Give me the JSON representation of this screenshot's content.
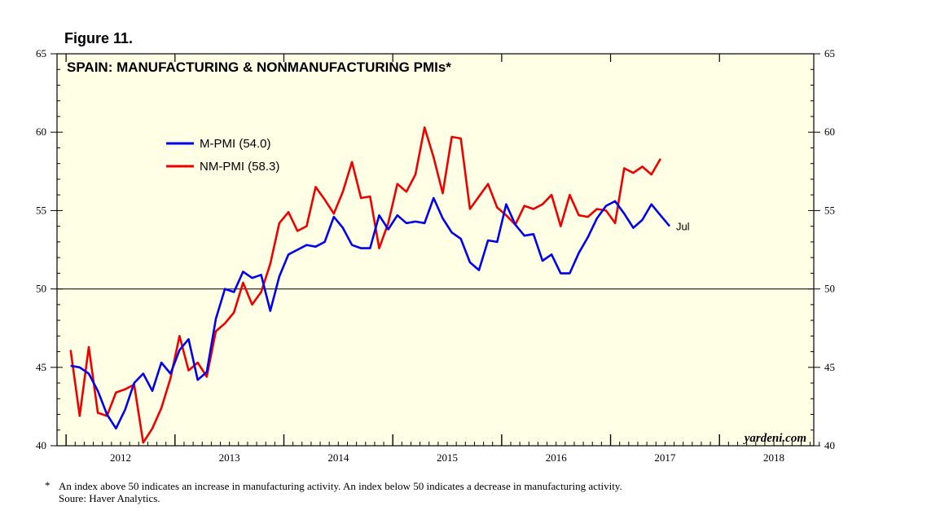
{
  "figure_label": "Figure 11.",
  "footnotes": {
    "asterisk": "*",
    "note": "An index above 50 indicates an increase in manufacturing activity. An index below 50 indicates a decrease in manufacturing activity.",
    "source": "Soure: Haver Analytics."
  },
  "colors": {
    "background": "#ffffe6",
    "m_pmi": "#0000ee",
    "nm_pmi": "#ee0000"
  },
  "chart_data": {
    "type": "line",
    "title": "SPAIN: MANUFACTURING & NONMANUFACTURING PMIs*",
    "watermark": "yardeni.com",
    "end_label": "Jul",
    "ylim": [
      40,
      65
    ],
    "y_ticks": [
      40,
      45,
      50,
      55,
      60,
      65
    ],
    "y_tick_labels": [
      "40",
      "45",
      "50",
      "55",
      "60",
      "65"
    ],
    "reference_line": 50,
    "x_start": "2011-12",
    "x_months": 84,
    "x_tick_labels": [
      "2012",
      "2013",
      "2014",
      "2015",
      "2016",
      "2017",
      "2018"
    ],
    "legend": [
      "M-PMI (54.0)",
      "NM-PMI (58.3)"
    ],
    "series": [
      {
        "name": "M-PMI",
        "latest": 54.0,
        "start": "2012-01",
        "values": [
          45.1,
          45.0,
          44.6,
          43.5,
          42.0,
          41.1,
          42.3,
          44.0,
          44.6,
          43.5,
          45.3,
          44.6,
          46.1,
          46.8,
          44.2,
          44.7,
          48.1,
          50.0,
          49.8,
          51.1,
          50.7,
          50.9,
          48.6,
          50.8,
          52.2,
          52.5,
          52.8,
          52.7,
          53.0,
          54.6,
          53.9,
          52.8,
          52.6,
          52.6,
          54.7,
          53.8,
          54.7,
          54.2,
          54.3,
          54.2,
          55.8,
          54.5,
          53.6,
          53.2,
          51.7,
          51.2,
          53.1,
          53.0,
          55.4,
          54.1,
          53.4,
          53.5,
          51.8,
          52.2,
          51.0,
          51.0,
          52.3,
          53.3,
          54.5,
          55.3,
          55.6,
          54.8,
          53.9,
          54.4,
          55.4,
          54.7,
          54.0
        ]
      },
      {
        "name": "NM-PMI",
        "latest": 58.3,
        "start": "2012-01",
        "values": [
          46.1,
          41.9,
          46.3,
          42.1,
          41.9,
          43.4,
          43.6,
          43.9,
          40.2,
          41.1,
          42.4,
          44.3,
          47.0,
          44.8,
          45.3,
          44.4,
          47.3,
          47.8,
          48.5,
          50.4,
          49.0,
          49.8,
          51.6,
          54.2,
          54.9,
          53.7,
          54.0,
          56.5,
          55.7,
          54.8,
          56.2,
          58.1,
          55.8,
          55.9,
          52.6,
          54.2,
          56.7,
          56.2,
          57.3,
          60.3,
          58.4,
          56.1,
          59.7,
          59.6,
          55.1,
          55.9,
          56.7,
          55.2,
          54.7,
          54.1,
          55.3,
          55.1,
          55.4,
          56.0,
          54.0,
          56.0,
          54.7,
          54.6,
          55.1,
          55.0,
          54.2,
          57.7,
          57.4,
          57.8,
          57.3,
          58.3
        ]
      }
    ]
  }
}
